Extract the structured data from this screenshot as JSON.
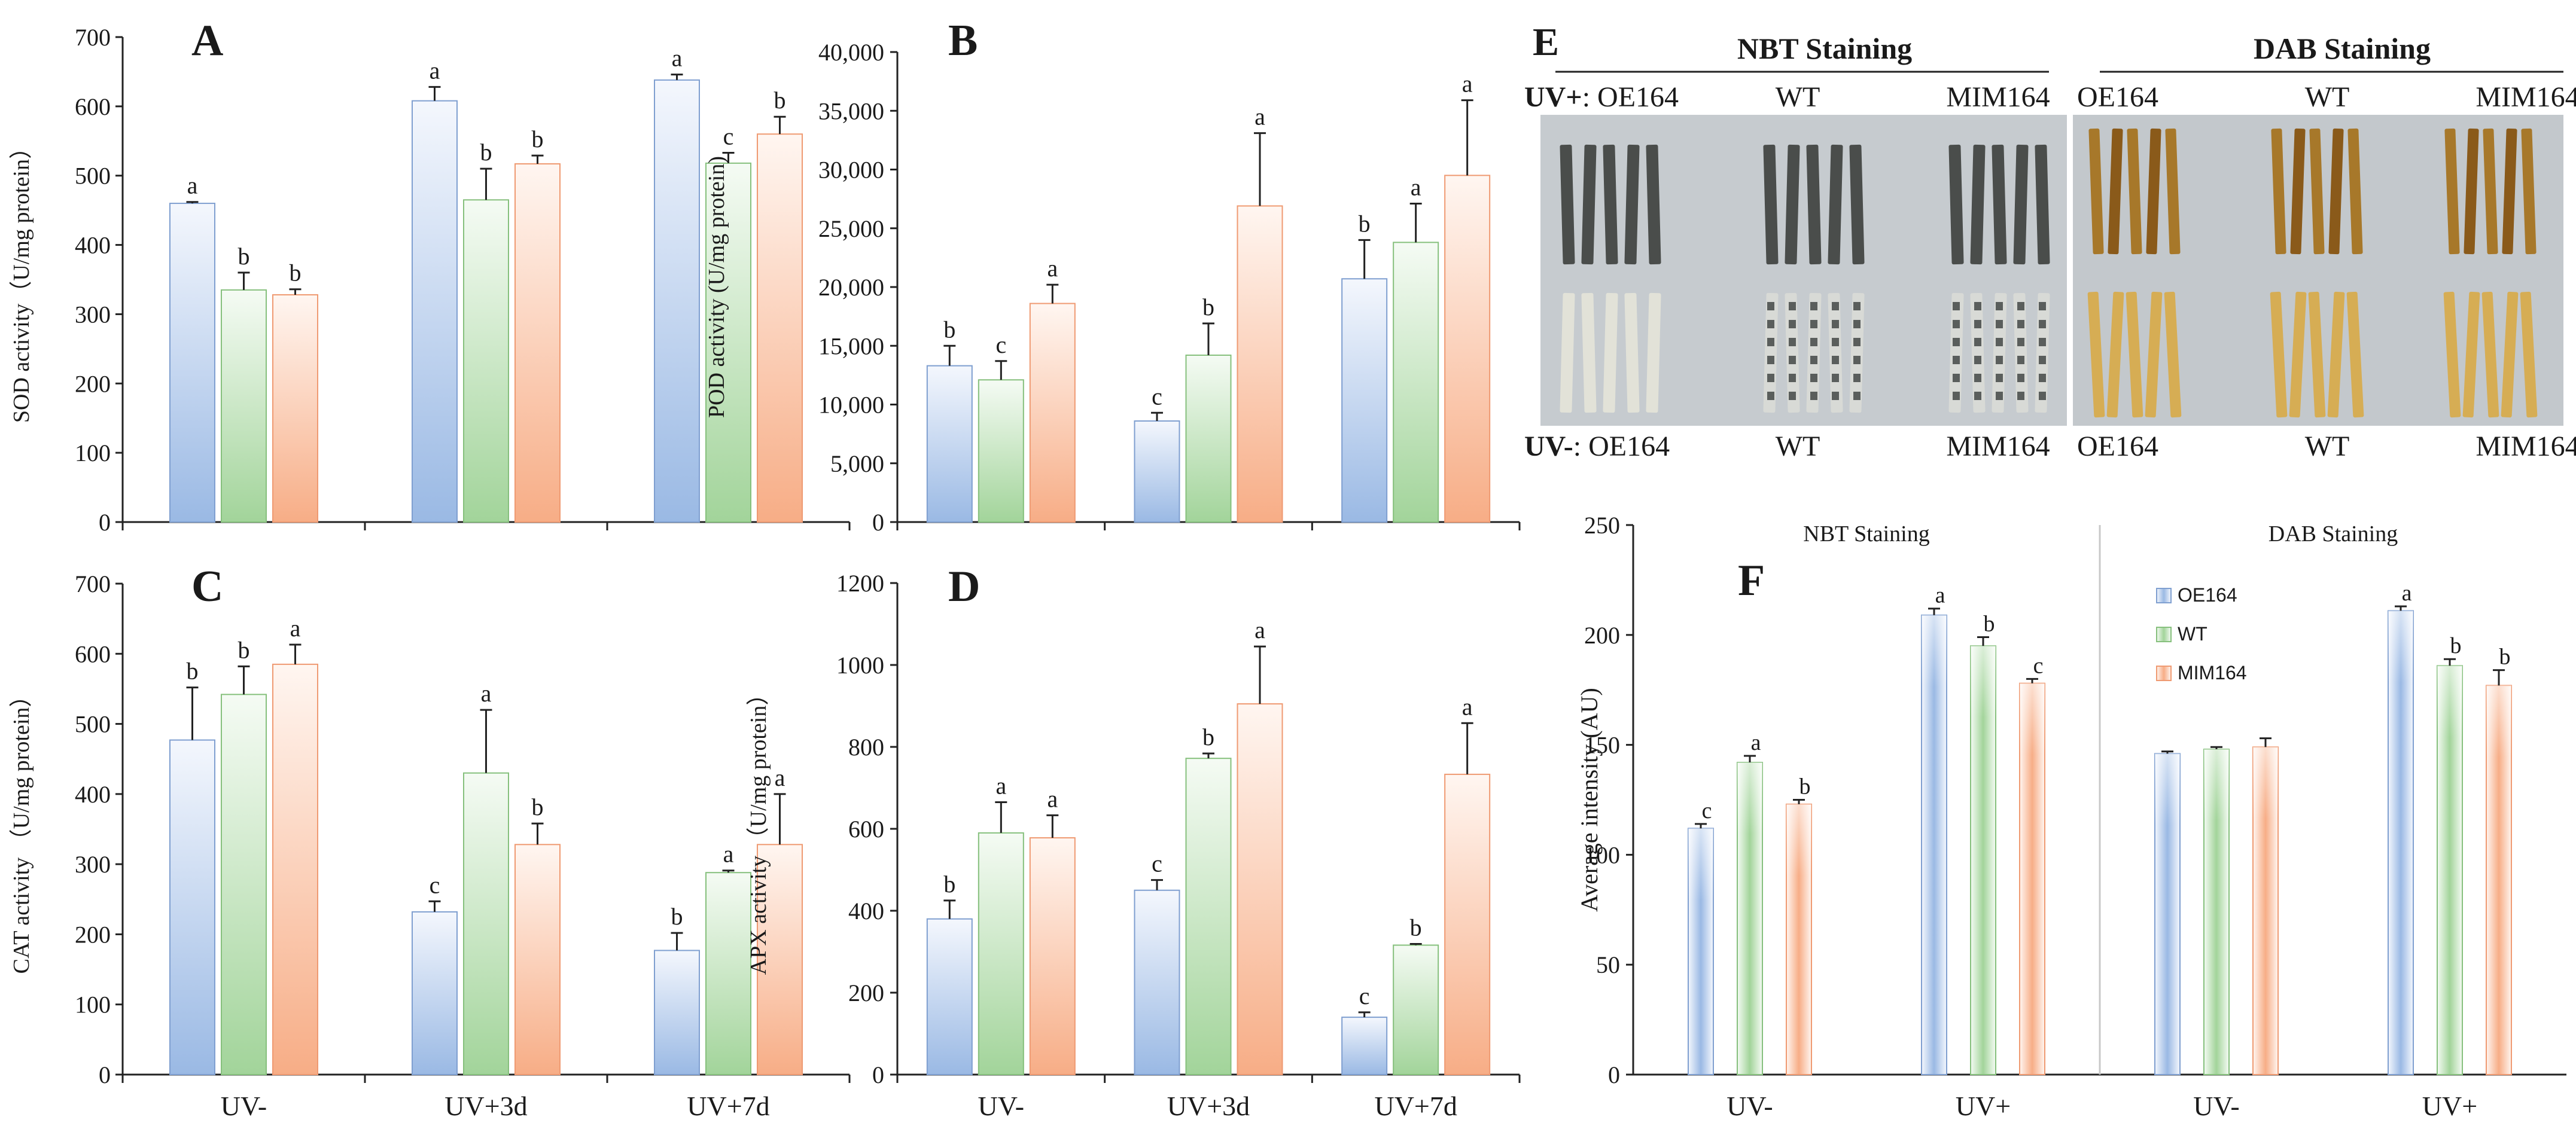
{
  "legend": [
    "OE164",
    "WT",
    "MIM164"
  ],
  "series_colors": [
    "#a6c2e6",
    "#a8d6a2",
    "#f9b896"
  ],
  "panel_e": {
    "letter": "E",
    "nbt_title": "NBT Staining",
    "dab_title": "DAB Staining",
    "uv_plus_label": "UV+",
    "uv_minus_label": "UV-",
    "sep": ":",
    "nbt_samples": [
      "OE164",
      "WT",
      "MIM164"
    ],
    "dab_samples": [
      "OE164",
      "WT",
      "MIM164"
    ],
    "nbt_uvplus_stain": "#4a4d4b",
    "nbt_uvminus_stain": "#5a5e5c",
    "dab_stain_dark": "#8a5a1a",
    "dab_stain_light": "#d6ad54",
    "photo_bg": "#c9ced2"
  },
  "chart_data": [
    {
      "panel": "A",
      "type": "bar",
      "categories": [
        "UV-",
        "UV+3d",
        "UV+7d"
      ],
      "ylabel": "SOD activity（U/mg protein）",
      "ylim": [
        0,
        700
      ],
      "yticks": [
        0,
        100,
        200,
        300,
        400,
        500,
        600,
        700
      ],
      "tick_labels": [
        "0",
        "100",
        "200",
        "300",
        "400",
        "500",
        "600",
        "700"
      ],
      "series": [
        {
          "values": [
            460,
            608,
            638
          ],
          "errors": [
            2,
            20,
            8
          ],
          "letters": [
            "a",
            "a",
            "a"
          ]
        },
        {
          "values": [
            335,
            465,
            518
          ],
          "errors": [
            25,
            45,
            15
          ],
          "letters": [
            "b",
            "b",
            "c"
          ]
        },
        {
          "values": [
            328,
            517,
            560
          ],
          "errors": [
            8,
            12,
            25
          ],
          "letters": [
            "b",
            "b",
            "b"
          ]
        }
      ]
    },
    {
      "panel": "B",
      "type": "bar",
      "categories": [
        "UV-",
        "UV+3d",
        "UV+7d"
      ],
      "ylabel": "POD activity (U/mg protein)",
      "ylim": [
        0,
        40000
      ],
      "yticks": [
        0,
        5000,
        10000,
        15000,
        20000,
        25000,
        30000,
        35000,
        40000
      ],
      "tick_labels": [
        "0",
        "5,000",
        "10,000",
        "15,000",
        "20,000",
        "25,000",
        "30,000",
        "35,000",
        "40,000"
      ],
      "series": [
        {
          "values": [
            13300,
            8600,
            20700
          ],
          "errors": [
            1700,
            700,
            3300
          ],
          "letters": [
            "b",
            "c",
            "b"
          ]
        },
        {
          "values": [
            12100,
            14200,
            23800
          ],
          "errors": [
            1600,
            2700,
            3300
          ],
          "letters": [
            "c",
            "b",
            "a"
          ]
        },
        {
          "values": [
            18600,
            26900,
            29500
          ],
          "errors": [
            1600,
            6200,
            6400
          ],
          "letters": [
            "a",
            "a",
            "a"
          ]
        }
      ]
    },
    {
      "panel": "C",
      "type": "bar",
      "categories": [
        "UV-",
        "UV+3d",
        "UV+7d"
      ],
      "ylabel": "CAT activity （U/mg protein）",
      "ylim": [
        0,
        700
      ],
      "yticks": [
        0,
        100,
        200,
        300,
        400,
        500,
        600,
        700
      ],
      "tick_labels": [
        "0",
        "100",
        "200",
        "300",
        "400",
        "500",
        "600",
        "700"
      ],
      "series": [
        {
          "values": [
            477,
            232,
            177
          ],
          "errors": [
            75,
            15,
            25
          ],
          "letters": [
            "b",
            "c",
            "b"
          ]
        },
        {
          "values": [
            542,
            430,
            288
          ],
          "errors": [
            40,
            90,
            3
          ],
          "letters": [
            "b",
            "a",
            "a"
          ]
        },
        {
          "values": [
            585,
            328,
            328
          ],
          "errors": [
            28,
            30,
            72
          ],
          "letters": [
            "a",
            "b",
            "a"
          ]
        }
      ]
    },
    {
      "panel": "D",
      "type": "bar",
      "categories": [
        "UV-",
        "UV+3d",
        "UV+7d"
      ],
      "ylabel": "APX activity （U/mg protein）",
      "ylim": [
        0,
        1200
      ],
      "yticks": [
        0,
        200,
        400,
        600,
        800,
        1000,
        1200
      ],
      "tick_labels": [
        "0",
        "200",
        "400",
        "600",
        "800",
        "1000",
        "1200"
      ],
      "series": [
        {
          "values": [
            380,
            450,
            140
          ],
          "errors": [
            45,
            25,
            12
          ],
          "letters": [
            "b",
            "c",
            "c"
          ]
        },
        {
          "values": [
            590,
            772,
            316
          ],
          "errors": [
            75,
            12,
            3
          ],
          "letters": [
            "a",
            "b",
            "b"
          ]
        },
        {
          "values": [
            578,
            905,
            733
          ],
          "errors": [
            55,
            140,
            125
          ],
          "letters": [
            "a",
            "a",
            "a"
          ]
        }
      ]
    },
    {
      "panel": "F",
      "type": "bar",
      "categories": [
        "UV-",
        "UV+",
        "UV-",
        "UV+"
      ],
      "groups": [
        "NBT Staining",
        "DAB Staining"
      ],
      "ylabel": "Average intensity (AU)",
      "ylim": [
        0,
        250
      ],
      "yticks": [
        0,
        50,
        100,
        150,
        200,
        250
      ],
      "tick_labels": [
        "0",
        "50",
        "100",
        "150",
        "200",
        "250"
      ],
      "legend": [
        "OE164",
        "WT",
        "MIM164"
      ],
      "series": [
        {
          "name": "OE164",
          "values": [
            112,
            209,
            146,
            211
          ],
          "errors": [
            2,
            3,
            1,
            2
          ],
          "letters": [
            "c",
            "a",
            "",
            "a"
          ]
        },
        {
          "name": "WT",
          "values": [
            142,
            195,
            148,
            186
          ],
          "errors": [
            3,
            4,
            1,
            3
          ],
          "letters": [
            "a",
            "b",
            "",
            "b"
          ]
        },
        {
          "name": "MIM164",
          "values": [
            123,
            178,
            149,
            177
          ],
          "errors": [
            2,
            2,
            4,
            7
          ],
          "letters": [
            "b",
            "c",
            "",
            "b"
          ]
        }
      ]
    }
  ]
}
